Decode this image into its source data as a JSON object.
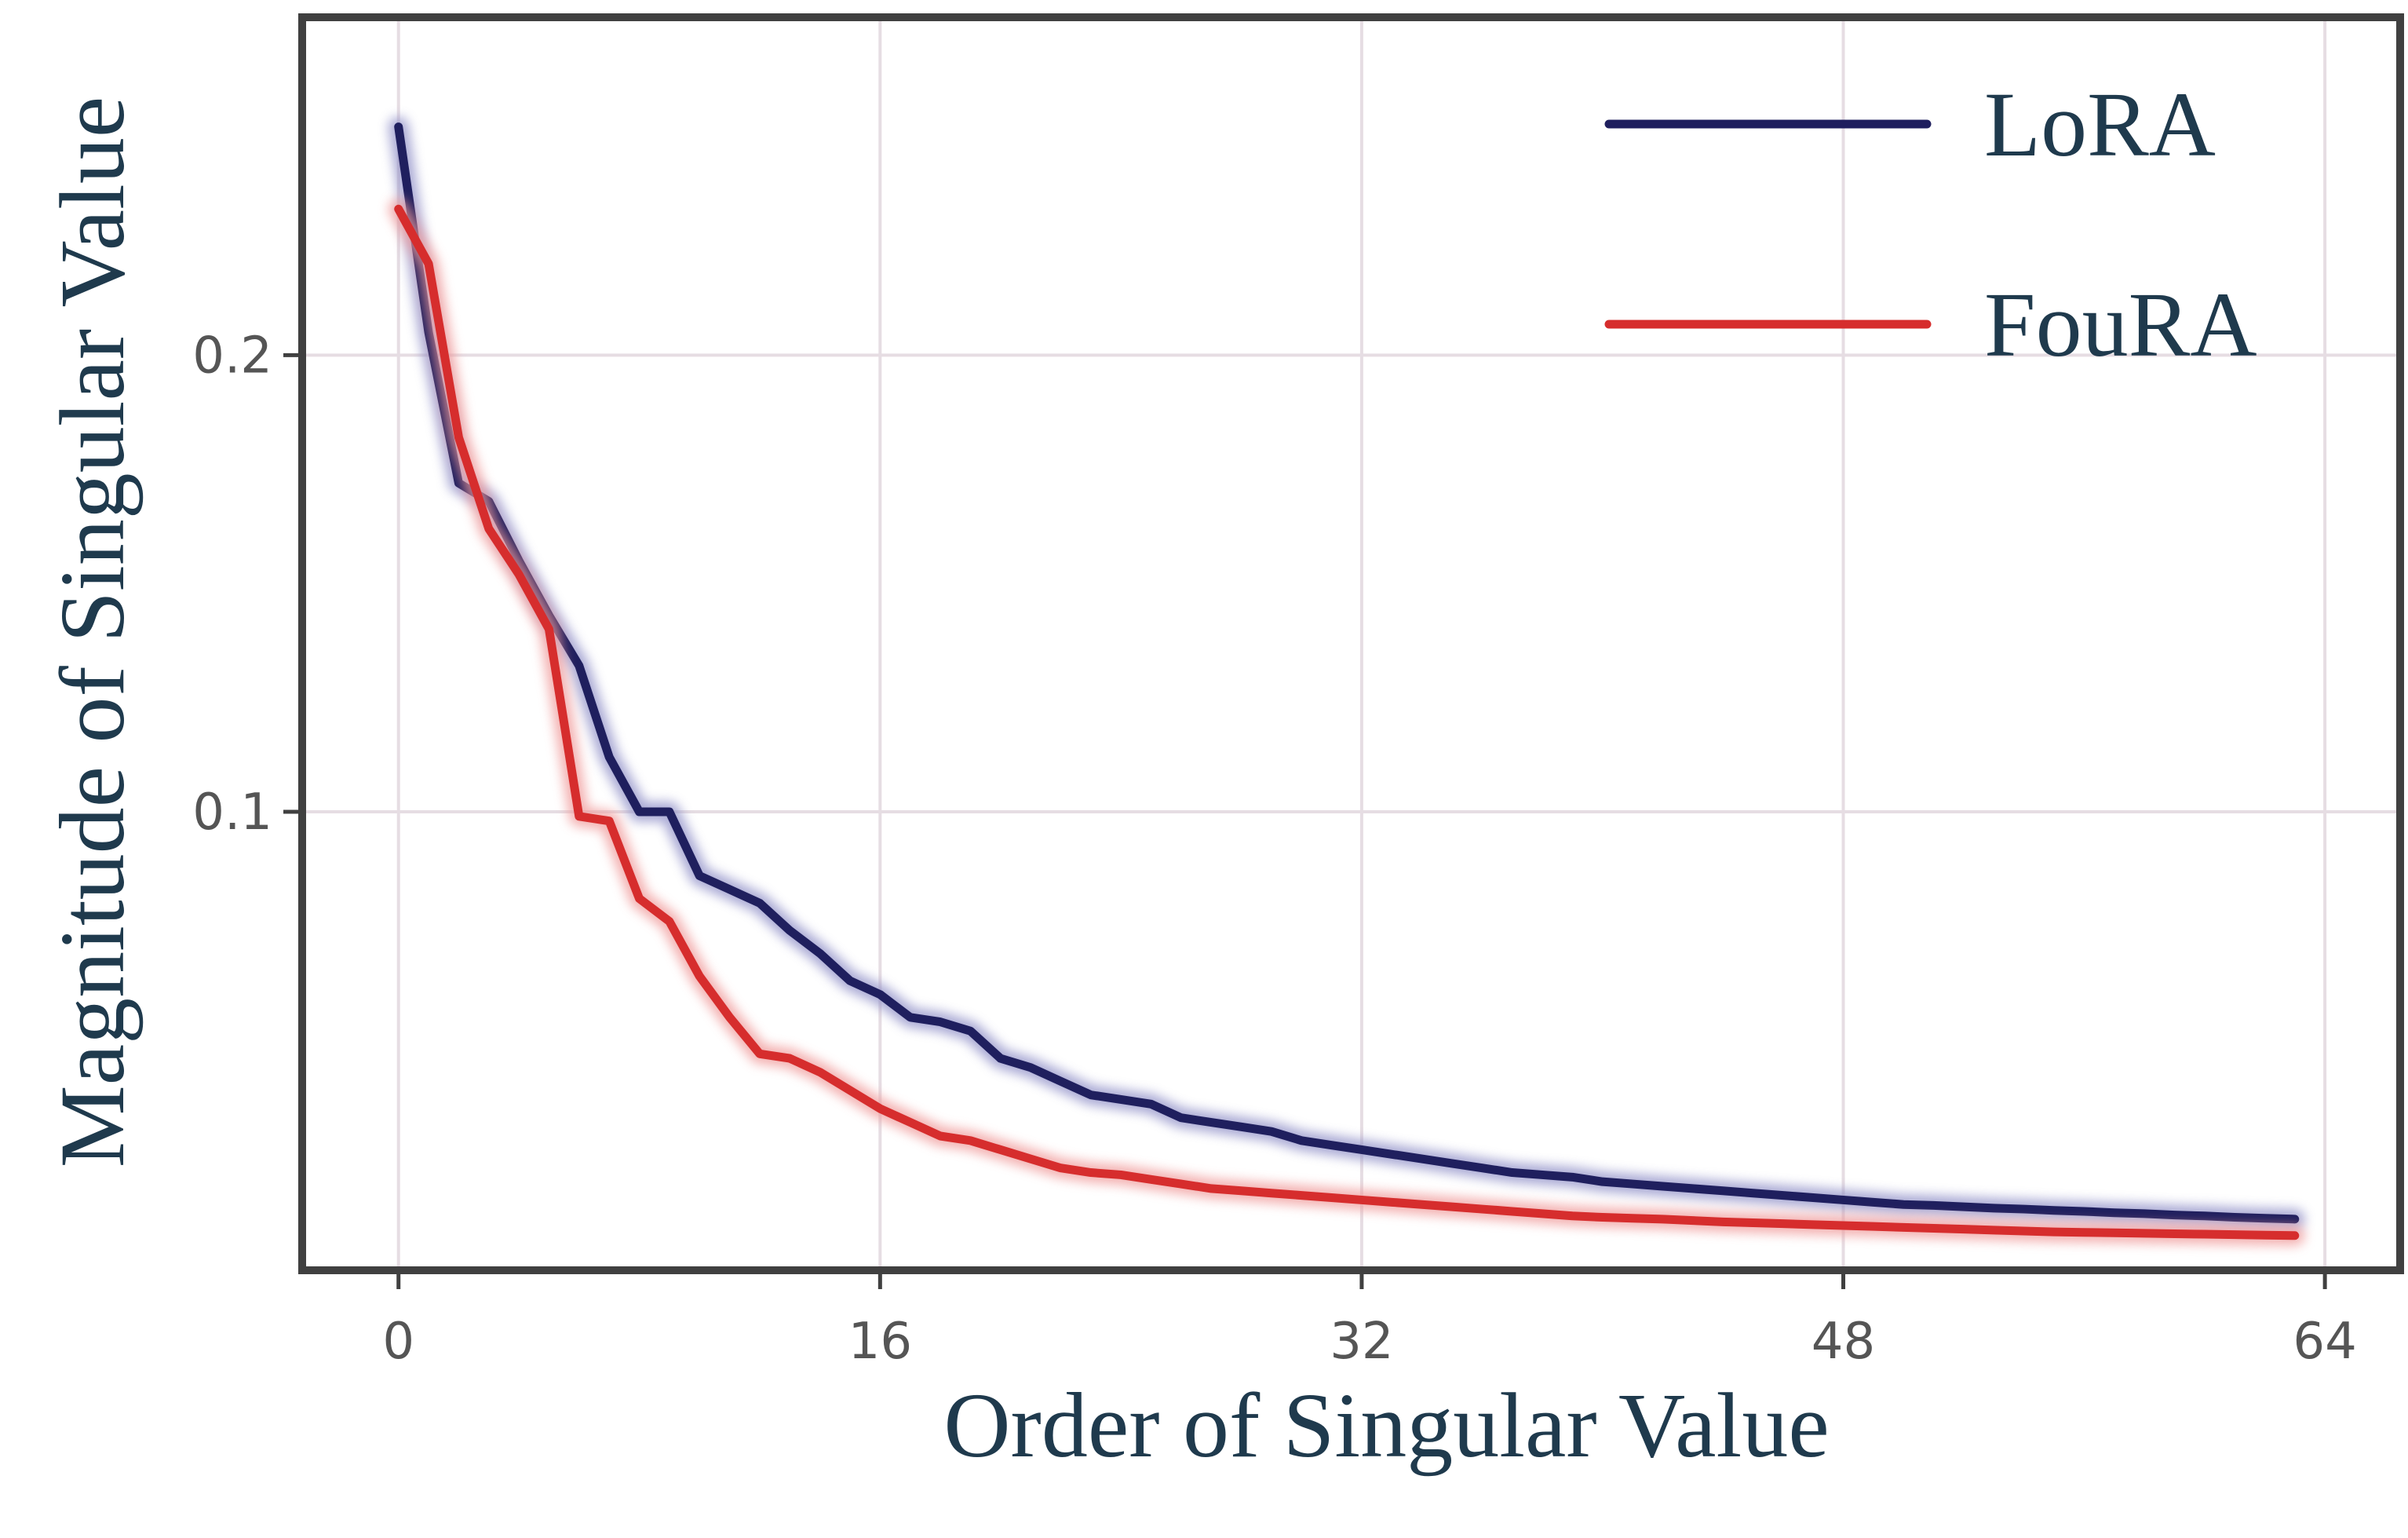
{
  "chart_data": {
    "type": "line",
    "xlabel": "Order of Singular Value",
    "ylabel": "Magnitude of Singular Value",
    "xlim": [
      -3.2,
      66.5
    ],
    "ylim": [
      -0.0004,
      0.274
    ],
    "x_ticks": [
      0,
      16,
      32,
      48,
      64
    ],
    "x_tick_labels": [
      "0",
      "16",
      "32",
      "48",
      "64"
    ],
    "y_ticks": [
      0.1,
      0.2
    ],
    "y_tick_labels": [
      "0.1",
      "0.2"
    ],
    "grid": true,
    "legend_position": "top-right",
    "series": [
      {
        "name": "LoRA",
        "color": "#1f1f5e",
        "x": [
          0,
          1,
          2,
          3,
          4,
          5,
          6,
          7,
          8,
          9,
          10,
          11,
          12,
          13,
          14,
          15,
          16,
          17,
          18,
          19,
          20,
          21,
          22,
          23,
          24,
          25,
          26,
          27,
          28,
          29,
          30,
          31,
          32,
          33,
          34,
          35,
          36,
          37,
          38,
          39,
          40,
          41,
          42,
          43,
          44,
          45,
          46,
          47,
          48,
          49,
          50,
          51,
          52,
          53,
          54,
          55,
          56,
          57,
          58,
          59,
          60,
          61,
          62,
          63
        ],
        "values": [
          0.25,
          0.205,
          0.172,
          0.168,
          0.155,
          0.143,
          0.132,
          0.112,
          0.1,
          0.1,
          0.086,
          0.083,
          0.08,
          0.074,
          0.069,
          0.063,
          0.06,
          0.055,
          0.054,
          0.052,
          0.046,
          0.044,
          0.041,
          0.038,
          0.037,
          0.036,
          0.033,
          0.032,
          0.031,
          0.03,
          0.028,
          0.027,
          0.026,
          0.025,
          0.024,
          0.023,
          0.022,
          0.021,
          0.0205,
          0.02,
          0.019,
          0.0185,
          0.018,
          0.0175,
          0.017,
          0.0165,
          0.016,
          0.0155,
          0.015,
          0.0145,
          0.014,
          0.0138,
          0.0135,
          0.0132,
          0.013,
          0.0127,
          0.0125,
          0.0122,
          0.012,
          0.0117,
          0.0115,
          0.0112,
          0.011,
          0.0108
        ]
      },
      {
        "name": "FouRA",
        "color": "#d62d2d",
        "x": [
          0,
          1,
          2,
          3,
          4,
          5,
          6,
          7,
          8,
          9,
          10,
          11,
          12,
          13,
          14,
          15,
          16,
          17,
          18,
          19,
          20,
          21,
          22,
          23,
          24,
          25,
          26,
          27,
          28,
          29,
          30,
          31,
          32,
          33,
          34,
          35,
          36,
          37,
          38,
          39,
          40,
          41,
          42,
          43,
          44,
          45,
          46,
          47,
          48,
          49,
          50,
          51,
          52,
          53,
          54,
          55,
          56,
          57,
          58,
          59,
          60,
          61,
          62,
          63
        ],
        "values": [
          0.232,
          0.22,
          0.182,
          0.162,
          0.152,
          0.14,
          0.099,
          0.098,
          0.081,
          0.076,
          0.064,
          0.055,
          0.047,
          0.046,
          0.043,
          0.039,
          0.035,
          0.032,
          0.029,
          0.028,
          0.026,
          0.024,
          0.022,
          0.021,
          0.0205,
          0.0195,
          0.0185,
          0.0175,
          0.017,
          0.0165,
          0.016,
          0.0155,
          0.015,
          0.0145,
          0.014,
          0.0135,
          0.013,
          0.0125,
          0.012,
          0.0115,
          0.0112,
          0.011,
          0.0108,
          0.0105,
          0.0102,
          0.01,
          0.0098,
          0.0096,
          0.0094,
          0.0092,
          0.009,
          0.0088,
          0.0086,
          0.0084,
          0.0082,
          0.008,
          0.0079,
          0.0078,
          0.0077,
          0.0076,
          0.0075,
          0.0074,
          0.0073,
          0.0072
        ]
      }
    ]
  }
}
